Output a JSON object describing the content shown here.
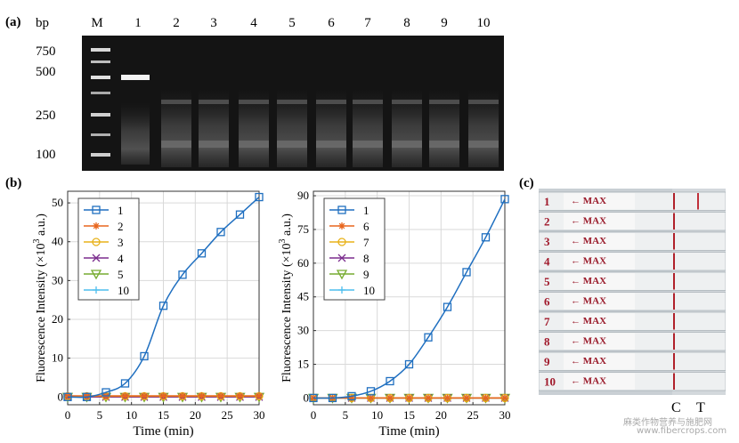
{
  "panel_a": {
    "label": "(a)",
    "bp_label": "bp",
    "marker_label": "M",
    "lanes": [
      "1",
      "2",
      "3",
      "4",
      "5",
      "6",
      "7",
      "8",
      "9",
      "10"
    ],
    "ladder_values": [
      "750",
      "500",
      "250",
      "100"
    ]
  },
  "panel_b": {
    "label": "(b)"
  },
  "panel_c": {
    "label": "(c)",
    "strip_numbers": [
      "1",
      "2",
      "3",
      "4",
      "5",
      "6",
      "7",
      "8",
      "9",
      "10"
    ],
    "max_text": "← MAX",
    "c_label": "C",
    "t_label": "T"
  },
  "watermark": {
    "line1": "麻类作物营养与施肥网",
    "line2": "www.fibercrops.com"
  },
  "chart_data": [
    {
      "type": "line",
      "xlabel": "Time (min)",
      "ylabel": "Fluorescence Intensity (×10³ a.u.)",
      "ylabel_main": "Fluorescence Intensity (",
      "ylabel_times": "×10",
      "ylabel_exp": "3",
      "ylabel_end": "a.u.)",
      "xlim": [
        0,
        30
      ],
      "ylim": [
        -2,
        53
      ],
      "xticks": [
        0,
        5,
        10,
        15,
        20,
        25,
        30
      ],
      "yticks": [
        0,
        10,
        20,
        30,
        40,
        50
      ],
      "grid": true,
      "legend_position": "top-left",
      "x": [
        0,
        3,
        6,
        9,
        12,
        15,
        18,
        21,
        24,
        27,
        30
      ],
      "series": [
        {
          "name": "1",
          "color": "#1f6fc0",
          "marker": "square",
          "values": [
            0,
            0,
            1.2,
            3.5,
            10.5,
            23.5,
            31.5,
            37,
            42.5,
            47,
            51.5
          ]
        },
        {
          "name": "2",
          "color": "#e8661e",
          "marker": "star",
          "values": [
            0.3,
            0.3,
            0.3,
            0.3,
            0.3,
            0.3,
            0.3,
            0.3,
            0.3,
            0.3,
            0.3
          ]
        },
        {
          "name": "3",
          "color": "#e8b21a",
          "marker": "circle",
          "values": [
            0.2,
            0.2,
            0.2,
            0.2,
            0.2,
            0.2,
            0.2,
            0.2,
            0.2,
            0.2,
            0.2
          ]
        },
        {
          "name": "4",
          "color": "#7b2d8e",
          "marker": "x",
          "values": [
            0,
            0,
            0,
            0,
            0,
            0,
            0,
            0,
            0,
            0,
            0
          ]
        },
        {
          "name": "5",
          "color": "#77ac30",
          "marker": "triangle-down",
          "values": [
            0,
            0,
            0,
            0,
            0,
            0,
            0,
            0,
            0,
            0,
            0
          ]
        },
        {
          "name": "10",
          "color": "#4dbeee",
          "marker": "plus",
          "values": [
            0,
            0,
            0,
            0,
            0,
            0,
            0,
            0,
            0,
            0,
            0
          ]
        }
      ]
    },
    {
      "type": "line",
      "xlabel": "Time (min)",
      "ylabel": "Fluorescence Intensity (×10³ a.u.)",
      "ylabel_main": "Fluorescence Intensity (",
      "ylabel_times": "×10",
      "ylabel_exp": "3",
      "ylabel_end": "a.u.)",
      "xlim": [
        0,
        30
      ],
      "ylim": [
        -3,
        92
      ],
      "xticks": [
        0,
        5,
        10,
        15,
        20,
        25,
        30
      ],
      "yticks": [
        0,
        15,
        30,
        45,
        60,
        75,
        90
      ],
      "grid": true,
      "legend_position": "top-left",
      "x": [
        0,
        3,
        6,
        9,
        12,
        15,
        18,
        21,
        24,
        27,
        30
      ],
      "series": [
        {
          "name": "1",
          "color": "#1f6fc0",
          "marker": "square",
          "values": [
            0,
            0,
            0.8,
            3,
            7.5,
            15,
            27,
            40.5,
            56,
            71.5,
            88.5
          ]
        },
        {
          "name": "6",
          "color": "#e8661e",
          "marker": "star",
          "values": [
            0,
            0,
            0,
            0,
            0,
            0,
            0,
            0,
            0,
            0,
            0
          ]
        },
        {
          "name": "7",
          "color": "#e8b21a",
          "marker": "circle",
          "values": [
            0,
            0,
            0,
            0,
            0,
            0,
            0,
            0,
            0,
            0,
            0
          ]
        },
        {
          "name": "8",
          "color": "#7b2d8e",
          "marker": "x",
          "values": [
            0,
            0,
            0,
            0,
            0,
            0,
            0,
            0,
            0,
            0,
            0
          ]
        },
        {
          "name": "9",
          "color": "#77ac30",
          "marker": "triangle-down",
          "values": [
            0,
            0,
            0,
            0,
            0,
            0,
            0,
            0,
            0,
            0,
            0
          ]
        },
        {
          "name": "10",
          "color": "#4dbeee",
          "marker": "plus",
          "values": [
            0,
            0,
            0,
            0,
            0,
            0,
            0,
            0,
            0,
            0,
            0
          ]
        }
      ]
    }
  ]
}
